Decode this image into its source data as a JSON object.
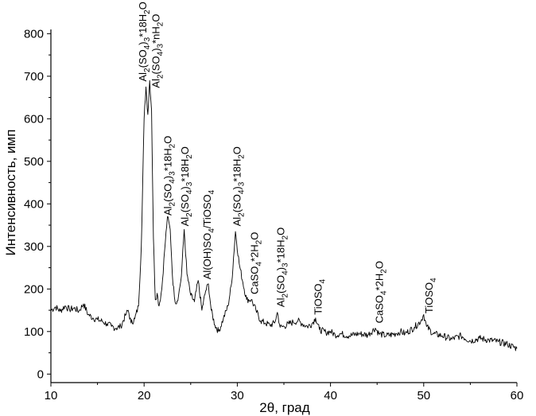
{
  "chart_data": {
    "type": "line",
    "xlabel": "2θ, град",
    "ylabel": "Интенсивность, имп",
    "xlim": [
      10,
      60
    ],
    "ylim": [
      -20,
      810
    ],
    "xticks": [
      10,
      20,
      30,
      40,
      50,
      60
    ],
    "yticks": [
      0,
      100,
      200,
      300,
      400,
      500,
      600,
      700,
      800
    ],
    "grid": false,
    "legend": "none",
    "series": [
      {
        "color": "#000000",
        "points": [
          [
            10.0,
            150
          ],
          [
            10.5,
            158
          ],
          [
            11.0,
            148
          ],
          [
            11.5,
            160
          ],
          [
            12.0,
            152
          ],
          [
            12.5,
            155
          ],
          [
            13.0,
            148
          ],
          [
            13.5,
            165
          ],
          [
            14.0,
            140
          ],
          [
            14.5,
            132
          ],
          [
            15.0,
            128
          ],
          [
            15.5,
            124
          ],
          [
            16.0,
            118
          ],
          [
            16.5,
            112
          ],
          [
            17.0,
            108
          ],
          [
            17.5,
            112
          ],
          [
            18.0,
            138
          ],
          [
            18.3,
            150
          ],
          [
            18.6,
            120
          ],
          [
            19.0,
            130
          ],
          [
            19.4,
            160
          ],
          [
            19.7,
            300
          ],
          [
            20.0,
            600
          ],
          [
            20.2,
            675
          ],
          [
            20.4,
            610
          ],
          [
            20.6,
            690
          ],
          [
            20.8,
            620
          ],
          [
            21.0,
            320
          ],
          [
            21.2,
            175
          ],
          [
            21.4,
            190
          ],
          [
            21.6,
            160
          ],
          [
            21.9,
            200
          ],
          [
            22.2,
            290
          ],
          [
            22.5,
            370
          ],
          [
            22.8,
            340
          ],
          [
            23.1,
            210
          ],
          [
            23.4,
            165
          ],
          [
            23.7,
            185
          ],
          [
            24.0,
            230
          ],
          [
            24.3,
            340
          ],
          [
            24.6,
            235
          ],
          [
            25.0,
            185
          ],
          [
            25.4,
            170
          ],
          [
            25.8,
            220
          ],
          [
            26.2,
            150
          ],
          [
            26.6,
            195
          ],
          [
            26.9,
            212
          ],
          [
            27.2,
            150
          ],
          [
            27.6,
            115
          ],
          [
            28.0,
            100
          ],
          [
            28.5,
            130
          ],
          [
            29.0,
            160
          ],
          [
            29.4,
            215
          ],
          [
            29.8,
            335
          ],
          [
            30.2,
            260
          ],
          [
            30.6,
            215
          ],
          [
            31.0,
            175
          ],
          [
            31.5,
            175
          ],
          [
            32.0,
            150
          ],
          [
            32.5,
            125
          ],
          [
            33.0,
            120
          ],
          [
            33.5,
            115
          ],
          [
            34.0,
            120
          ],
          [
            34.3,
            145
          ],
          [
            34.6,
            110
          ],
          [
            35.0,
            112
          ],
          [
            35.5,
            118
          ],
          [
            36.0,
            122
          ],
          [
            36.5,
            125
          ],
          [
            37.0,
            118
          ],
          [
            37.5,
            112
          ],
          [
            38.0,
            118
          ],
          [
            38.4,
            132
          ],
          [
            38.8,
            105
          ],
          [
            39.5,
            98
          ],
          [
            40.0,
            100
          ],
          [
            40.5,
            92
          ],
          [
            41.0,
            95
          ],
          [
            42.0,
            90
          ],
          [
            43.0,
            95
          ],
          [
            44.0,
            92
          ],
          [
            44.8,
            108
          ],
          [
            45.2,
            95
          ],
          [
            46.0,
            90
          ],
          [
            47.0,
            95
          ],
          [
            47.5,
            100
          ],
          [
            48.0,
            95
          ],
          [
            49.0,
            110
          ],
          [
            49.7,
            125
          ],
          [
            50.0,
            140
          ],
          [
            50.3,
            112
          ],
          [
            51.0,
            95
          ],
          [
            52.0,
            90
          ],
          [
            53.0,
            82
          ],
          [
            54.0,
            90
          ],
          [
            55.0,
            78
          ],
          [
            56.0,
            84
          ],
          [
            57.0,
            80
          ],
          [
            58.0,
            76
          ],
          [
            59.0,
            70
          ],
          [
            60.0,
            60
          ]
        ]
      }
    ],
    "annotations": [
      {
        "x": 19.9,
        "y": 680,
        "base": "Al",
        "sub1": "2",
        "mid": "(SO",
        "sub2": "4",
        "end": ")",
        "sub3": "3",
        "tail": "*18H",
        "sub4": "2",
        "suffix": "O"
      },
      {
        "x": 21.3,
        "y": 665,
        "base": "Al",
        "sub1": "2",
        "mid": "(SO",
        "sub2": "4",
        "end": ")",
        "sub3": "3",
        "tail": "*nH",
        "sub4": "2",
        "suffix": "O"
      },
      {
        "x": 22.6,
        "y": 365,
        "base": "Al",
        "sub1": "2",
        "mid": "(SO",
        "sub2": "4",
        "end": ")",
        "sub3": "3",
        "tail": "*18H",
        "sub4": "2",
        "suffix": "O"
      },
      {
        "x": 24.4,
        "y": 340,
        "base": "Al",
        "sub1": "2",
        "mid": "(SO",
        "sub2": "4",
        "end": ")",
        "sub3": "3",
        "tail": "*18H",
        "sub4": "2",
        "suffix": "O"
      },
      {
        "x": 26.8,
        "y": 215,
        "base": "Al(OH)SO",
        "sub1": "4",
        "mid": "/TiOSO",
        "sub2": "4",
        "end": "",
        "sub3": "",
        "tail": "",
        "sub4": "",
        "suffix": ""
      },
      {
        "x": 30.0,
        "y": 340,
        "base": "Al",
        "sub1": "2",
        "mid": "(SO",
        "sub2": "4",
        "end": ")",
        "sub3": "3",
        "tail": "*18H",
        "sub4": "2",
        "suffix": "O"
      },
      {
        "x": 31.9,
        "y": 180,
        "base": "CaSO",
        "sub1": "4",
        "mid": "*2H",
        "sub2": "2",
        "end": "O",
        "sub3": "",
        "tail": "",
        "sub4": "",
        "suffix": ""
      },
      {
        "x": 34.7,
        "y": 150,
        "base": "Al",
        "sub1": "2",
        "mid": "(SO",
        "sub2": "4",
        "end": ")",
        "sub3": "3",
        "tail": "*18H",
        "sub4": "2",
        "suffix": "O"
      },
      {
        "x": 38.7,
        "y": 132,
        "base": "TiOSO",
        "sub1": "4",
        "mid": "",
        "sub2": "",
        "end": "",
        "sub3": "",
        "tail": "",
        "sub4": "",
        "suffix": ""
      },
      {
        "x": 45.3,
        "y": 112,
        "base": "CaSO",
        "sub1": "4",
        "mid": "*2H",
        "sub2": "2",
        "end": "O",
        "sub3": "",
        "tail": "",
        "sub4": "",
        "suffix": ""
      },
      {
        "x": 50.6,
        "y": 135,
        "base": "TiOSO",
        "sub1": "4",
        "mid": "",
        "sub2": "",
        "end": "",
        "sub3": "",
        "tail": "",
        "sub4": "",
        "suffix": ""
      }
    ]
  }
}
